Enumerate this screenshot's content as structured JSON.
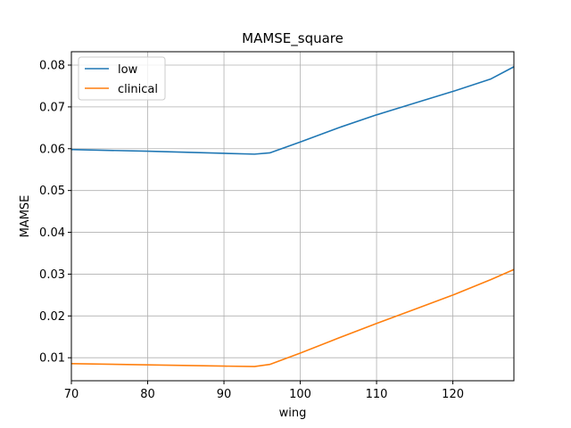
{
  "chart_data": {
    "type": "line",
    "title": "MAMSE_square",
    "xlabel": "wing",
    "ylabel": "MAMSE",
    "xlim": [
      70,
      128
    ],
    "ylim": [
      0.0045,
      0.0832
    ],
    "xticks": [
      70,
      80,
      90,
      100,
      110,
      120
    ],
    "yticks": [
      0.01,
      0.02,
      0.03,
      0.04,
      0.05,
      0.06,
      0.07,
      0.08
    ],
    "ytick_labels": [
      "0.01",
      "0.02",
      "0.03",
      "0.04",
      "0.05",
      "0.06",
      "0.07",
      "0.08"
    ],
    "grid": true,
    "legend_position": "upper-left",
    "series": [
      {
        "name": "low",
        "color": "#1f77b4",
        "x": [
          70,
          80,
          90,
          94,
          96,
          100,
          105,
          110,
          115,
          120,
          125,
          128
        ],
        "y": [
          0.0598,
          0.0594,
          0.0589,
          0.0587,
          0.059,
          0.0616,
          0.065,
          0.0681,
          0.0709,
          0.0737,
          0.0767,
          0.0796
        ]
      },
      {
        "name": "clinical",
        "color": "#ff7f0e",
        "x": [
          70,
          80,
          90,
          94,
          96,
          100,
          105,
          110,
          115,
          120,
          125,
          128
        ],
        "y": [
          0.0086,
          0.0083,
          0.008,
          0.0079,
          0.0084,
          0.0111,
          0.0147,
          0.0182,
          0.0216,
          0.025,
          0.0287,
          0.0311
        ]
      }
    ]
  }
}
